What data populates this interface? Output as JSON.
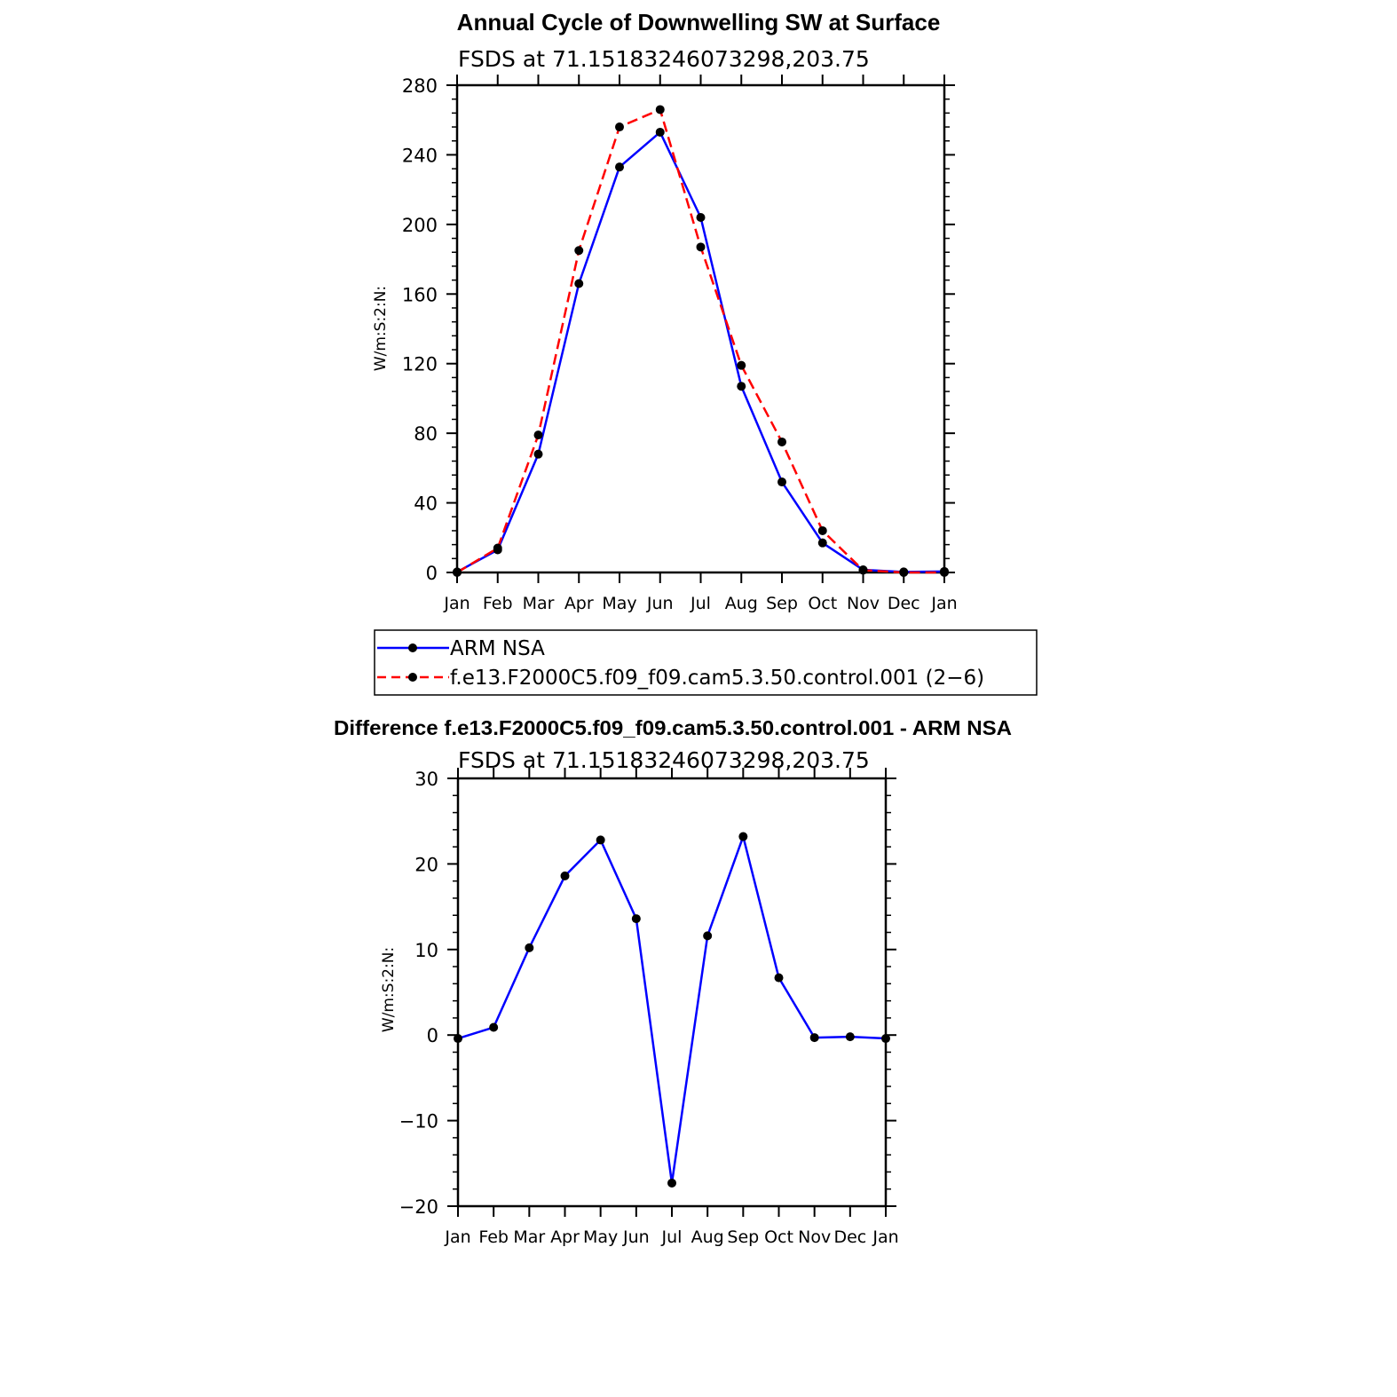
{
  "chart_data": [
    {
      "type": "line",
      "title": "Annual Cycle of Downwelling SW at Surface",
      "subtitle": "FSDS at 71.15183246073298,203.75",
      "ylabel": "W/m:S:2:N:",
      "xlabel": "",
      "x": [
        "Jan",
        "Feb",
        "Mar",
        "Apr",
        "May",
        "Jun",
        "Jul",
        "Aug",
        "Sep",
        "Oct",
        "Nov",
        "Dec",
        "Jan"
      ],
      "ylim": [
        0,
        280
      ],
      "yticks": [
        0,
        40,
        80,
        120,
        160,
        200,
        240,
        280
      ],
      "grid": false,
      "legend_position": "bottom",
      "series": [
        {
          "name": "ARM NSA",
          "color": "#0000ff",
          "dash": "solid",
          "values": [
            0.3,
            13,
            68,
            166,
            233,
            253,
            204,
            107,
            52,
            17,
            1.5,
            0.3,
            0.6
          ]
        },
        {
          "name": "f.e13.F2000C5.f09_f09.cam5.3.50.control.001 (2−6)",
          "color": "#ff0000",
          "dash": "dashed",
          "values": [
            0,
            14,
            79,
            185,
            256,
            266,
            187,
            119,
            75,
            24,
            1.3,
            0,
            0
          ]
        }
      ]
    },
    {
      "type": "line",
      "title": "Difference f.e13.F2000C5.f09_f09.cam5.3.50.control.001 - ARM NSA",
      "subtitle": "FSDS at 71.15183246073298,203.75",
      "ylabel": "W/m:S:2:N:",
      "xlabel": "",
      "x": [
        "Jan",
        "Feb",
        "Mar",
        "Apr",
        "May",
        "Jun",
        "Jul",
        "Aug",
        "Sep",
        "Oct",
        "Nov",
        "Dec",
        "Jan"
      ],
      "ylim": [
        -20,
        30
      ],
      "yticks": [
        -20,
        -10,
        0,
        10,
        20,
        30
      ],
      "ytick_labels": [
        "−20",
        "−10",
        "0",
        "10",
        "20",
        "30"
      ],
      "grid": false,
      "series": [
        {
          "color": "#0000ff",
          "dash": "solid",
          "values": [
            -0.4,
            0.9,
            10.2,
            18.6,
            22.8,
            13.6,
            -17.3,
            11.6,
            23.2,
            6.7,
            -0.3,
            -0.2,
            -0.4
          ]
        }
      ]
    }
  ]
}
